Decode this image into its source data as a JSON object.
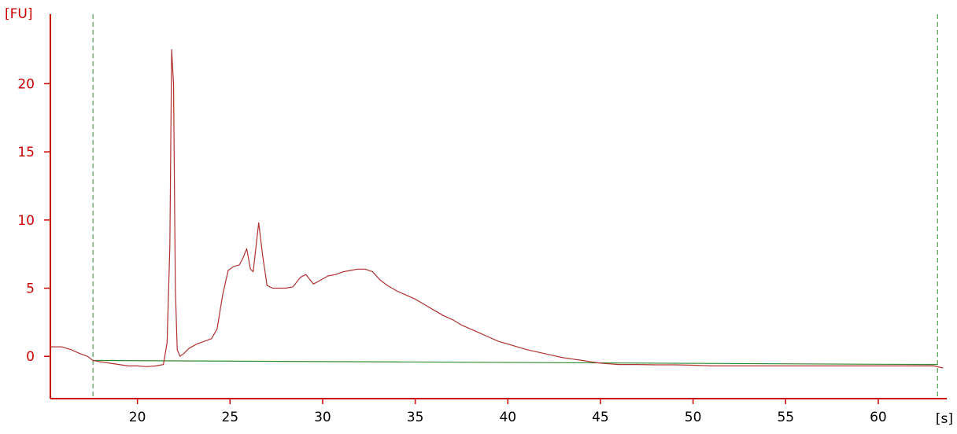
{
  "chart_data": {
    "type": "line",
    "title": "",
    "xlabel": "[s]",
    "ylabel": "[FU]",
    "xlim": [
      15.3,
      63.7
    ],
    "ylim": [
      -3.1,
      25.1
    ],
    "xticks": [
      20,
      25,
      30,
      35,
      40,
      45,
      50,
      55,
      60
    ],
    "yticks": [
      0,
      5,
      10,
      15,
      20
    ],
    "grid": false,
    "legend": "none",
    "colors": {
      "axis": "#cc0000",
      "trace": "#b03030",
      "baseline": "#2e8b2e",
      "markers": "#2e8b2e",
      "xaxis_text": "#000000"
    },
    "markers": [
      17.6,
      63.2
    ],
    "series": [
      {
        "x": [
          15.3,
          15.9,
          16.4,
          16.9,
          17.3,
          17.6,
          18.0,
          18.5,
          19.0,
          19.5,
          20.0,
          20.5,
          21.0,
          21.4,
          21.6,
          21.75,
          21.85,
          21.95,
          22.05,
          22.15,
          22.3,
          22.5,
          22.8,
          23.2,
          23.6,
          24.0,
          24.3,
          24.6,
          24.9,
          25.2,
          25.5,
          25.7,
          25.9,
          26.1,
          26.25,
          26.4,
          26.55,
          26.75,
          27.0,
          27.3,
          27.6,
          28.0,
          28.4,
          28.8,
          29.1,
          29.5,
          29.9,
          30.3,
          30.7,
          31.1,
          31.5,
          31.9,
          32.3,
          32.7,
          33.1,
          33.5,
          34.0,
          34.5,
          35.0,
          35.5,
          36.0,
          36.5,
          37.0,
          37.5,
          38.0,
          38.5,
          39.0,
          39.5,
          40.0,
          40.5,
          41.0,
          41.5,
          42.0,
          42.5,
          43.0,
          43.5,
          44.0,
          44.5,
          45.0,
          45.5,
          46.0,
          47.0,
          48.0,
          49.0,
          50.0,
          51.0,
          52.0,
          53.0,
          54.0,
          55.0,
          56.0,
          57.0,
          58.0,
          59.0,
          60.0,
          61.0,
          62.0,
          63.0,
          63.5
        ],
        "y": [
          0.7,
          0.7,
          0.5,
          0.2,
          0.0,
          -0.3,
          -0.4,
          -0.5,
          -0.6,
          -0.7,
          -0.7,
          -0.75,
          -0.7,
          -0.6,
          1.0,
          8.0,
          22.5,
          20.0,
          5.0,
          0.5,
          0.0,
          0.2,
          0.6,
          0.9,
          1.1,
          1.3,
          2.0,
          4.5,
          6.3,
          6.6,
          6.7,
          7.2,
          7.9,
          6.4,
          6.2,
          8.0,
          9.8,
          7.5,
          5.2,
          5.0,
          5.0,
          5.0,
          5.1,
          5.8,
          6.0,
          5.3,
          5.6,
          5.9,
          6.0,
          6.2,
          6.3,
          6.4,
          6.4,
          6.2,
          5.6,
          5.2,
          4.8,
          4.5,
          4.2,
          3.8,
          3.4,
          3.0,
          2.7,
          2.3,
          2.0,
          1.7,
          1.4,
          1.1,
          0.9,
          0.7,
          0.5,
          0.35,
          0.2,
          0.05,
          -0.1,
          -0.2,
          -0.3,
          -0.4,
          -0.5,
          -0.55,
          -0.6,
          -0.6,
          -0.62,
          -0.62,
          -0.65,
          -0.7,
          -0.7,
          -0.7,
          -0.7,
          -0.7,
          -0.7,
          -0.7,
          -0.7,
          -0.7,
          -0.7,
          -0.7,
          -0.7,
          -0.7,
          -0.85
        ]
      }
    ],
    "baseline": {
      "x": [
        17.6,
        63.2
      ],
      "y": [
        -0.3,
        -0.6
      ]
    }
  }
}
